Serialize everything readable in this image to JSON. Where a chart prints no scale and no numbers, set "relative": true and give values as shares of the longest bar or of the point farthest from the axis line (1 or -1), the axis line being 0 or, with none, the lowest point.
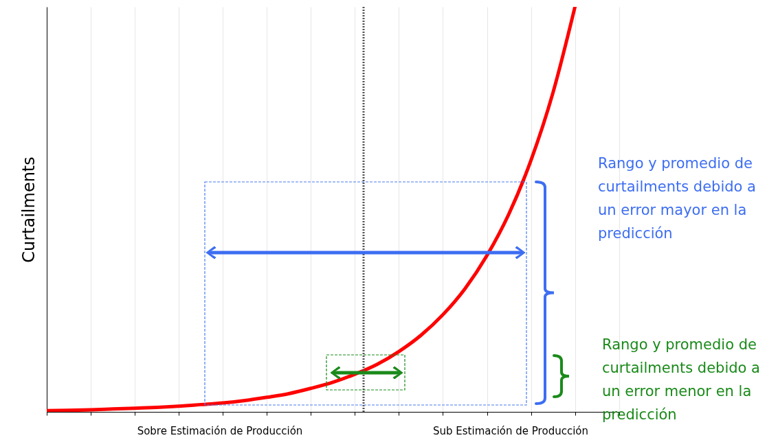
{
  "chart_data": {
    "type": "line",
    "relative": true,
    "ylabel": "Curtailments",
    "categories": [
      null,
      null,
      null,
      null,
      null,
      null,
      null,
      null,
      null,
      null,
      null,
      null,
      null,
      null,
      null,
      null,
      null,
      null,
      null,
      null,
      null,
      null,
      null,
      null,
      null,
      null,
      null
    ],
    "series": [
      {
        "color": "#ff0000",
        "values": [
          0.003,
          0.004,
          0.005,
          0.007,
          0.009,
          0.011,
          0.014,
          0.018,
          0.022,
          0.028,
          0.036,
          0.045,
          0.058,
          0.073,
          0.093,
          0.117,
          0.149,
          0.189,
          0.24,
          0.304,
          0.386,
          0.489,
          0.621,
          0.788,
          1,
          null,
          null
        ]
      }
    ],
    "grid": "x",
    "marker": "none",
    "line_style": "solid",
    "annotations": [
      "Sobre Estimación de Producción",
      "Sub Estimación de Producción",
      "Rango y promedio de curtailments debido a un error mayor en la predicción",
      "Rango y promedio de curtailments debido a un error menor en la predicción"
    ]
  }
}
